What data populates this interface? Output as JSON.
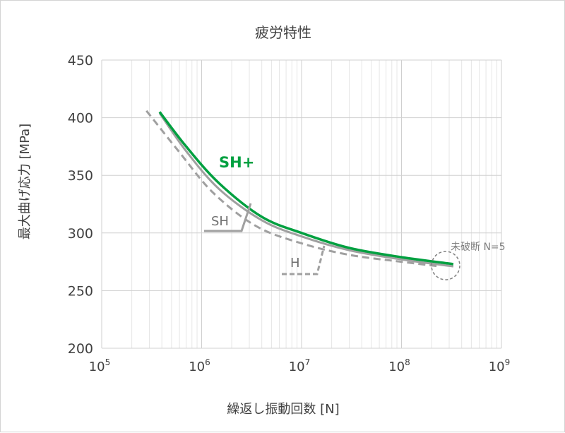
{
  "chart_data": {
    "type": "line",
    "title": "疲労特性",
    "xlabel": "繰返し振動回数 [N]",
    "ylabel": "最大曲げ応力 [MPa]",
    "x_scale": "log",
    "xlim": [
      100000,
      1000000000
    ],
    "ylim": [
      200,
      450
    ],
    "grid": true,
    "y_ticks": [
      "200",
      "250",
      "300",
      "350",
      "400",
      "450"
    ],
    "x_ticks": [
      {
        "base": "10",
        "exp": "5"
      },
      {
        "base": "10",
        "exp": "6"
      },
      {
        "base": "10",
        "exp": "7"
      },
      {
        "base": "10",
        "exp": "8"
      },
      {
        "base": "10",
        "exp": "9"
      }
    ],
    "series": [
      {
        "name": "SH+",
        "style": "solid",
        "color": "#00a040",
        "x": [
          380000,
          700000,
          1500000,
          4000000,
          10000000,
          30000000,
          100000000,
          330000000
        ],
        "y": [
          405,
          375,
          343,
          314,
          300,
          287,
          279,
          273
        ]
      },
      {
        "name": "SH",
        "style": "solid",
        "color": "#a0a0a0",
        "x": [
          380000,
          700000,
          1500000,
          4000000,
          10000000,
          30000000,
          100000000,
          330000000
        ],
        "y": [
          404,
          371,
          338,
          311,
          297,
          285,
          277,
          271
        ]
      },
      {
        "name": "H",
        "style": "dashed",
        "color": "#a0a0a0",
        "x": [
          280000,
          600000,
          1300000,
          3500000,
          10000000,
          30000000,
          100000000,
          240000000
        ],
        "y": [
          406,
          370,
          335,
          306,
          291,
          281,
          275,
          271
        ]
      }
    ],
    "annotations": {
      "sh_plus": "SH+",
      "sh": "SH",
      "h": "H",
      "runout": "未破断 N=5"
    }
  }
}
